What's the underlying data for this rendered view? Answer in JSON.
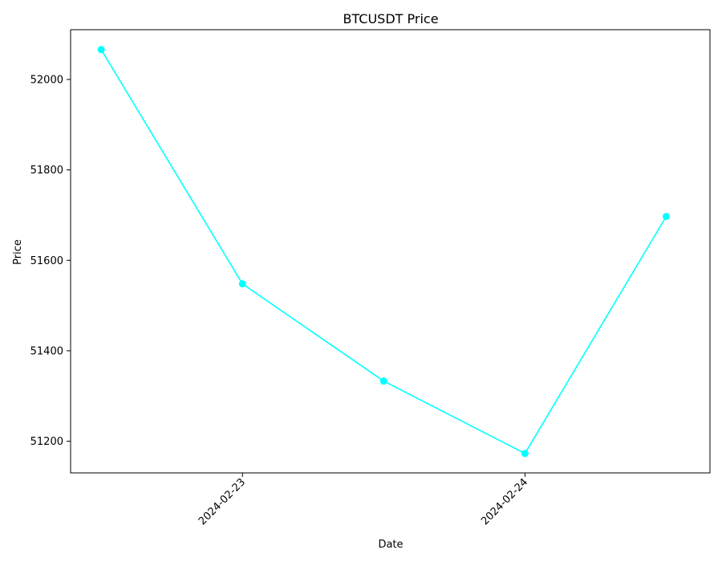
{
  "chart_data": {
    "type": "line",
    "title": "BTCUSDT Price",
    "xlabel": "Date",
    "ylabel": "Price",
    "x": [
      "2024-02-22 12:00",
      "2024-02-23 00:00",
      "2024-02-23 12:00",
      "2024-02-24 00:00",
      "2024-02-24 12:00"
    ],
    "series": [
      {
        "values": [
          52066,
          51548,
          51333,
          51173,
          51697
        ]
      }
    ],
    "xlim": [
      "2024-02-22 09:24",
      "2024-02-24 15:43"
    ],
    "ylim": [
      51130,
      52110
    ],
    "yticks": [
      51200,
      51400,
      51600,
      51800,
      52000
    ],
    "xticks": [
      "2024-02-23",
      "2024-02-24"
    ],
    "line_color": "#00ffff",
    "marker": "circle",
    "grid": false
  }
}
